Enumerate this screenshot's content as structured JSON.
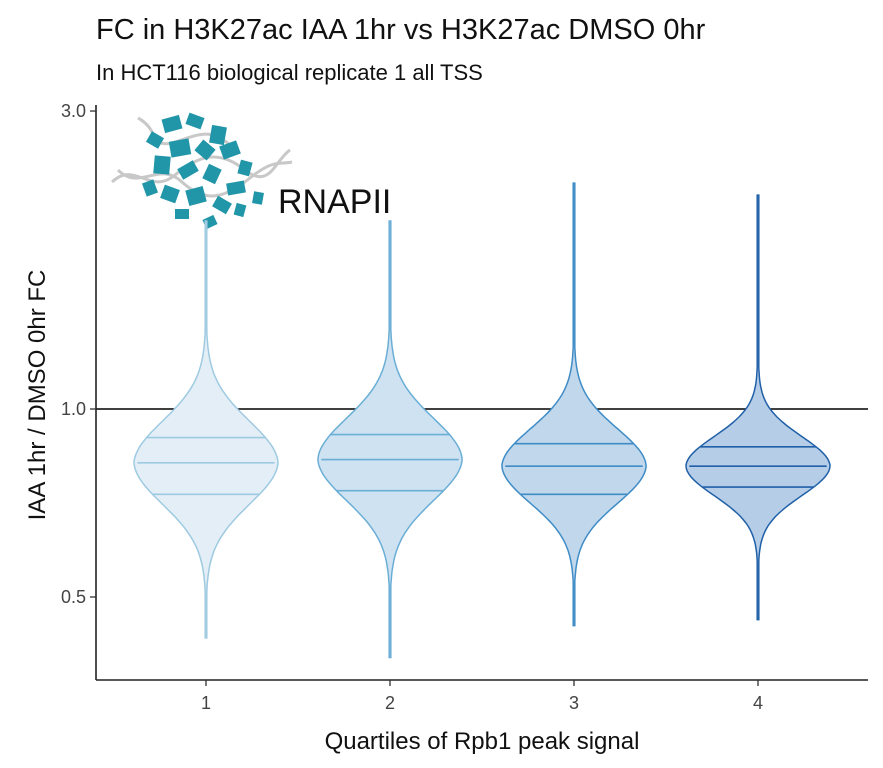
{
  "header": {
    "title": "FC in H3K27ac IAA 1hr vs H3K27ac DMSO 0hr",
    "subtitle": "In HCT116 biological replicate 1 all TSS"
  },
  "logo": {
    "label": "RNAPII",
    "icon": "rnapii-protein-icon",
    "color": "#2196a8"
  },
  "chart_data": {
    "type": "violin",
    "title": "FC in H3K27ac IAA 1hr vs H3K27ac DMSO 0hr",
    "subtitle": "In HCT116 biological replicate 1 all TSS",
    "xlabel": "Quartiles of Rpb1 peak signal",
    "ylabel": "IAA 1hr / DMSO 0hr FC",
    "y_scale": "log2",
    "ylim": [
      0.38,
      3.1
    ],
    "y_ticks": [
      0.5,
      1.0,
      3.0
    ],
    "y_tick_labels": [
      "0.5",
      "1.0",
      "3.0"
    ],
    "categories": [
      "1",
      "2",
      "3",
      "4"
    ],
    "reference_line": 1.0,
    "quantiles_drawn": [
      0.25,
      0.5,
      0.75
    ],
    "series": [
      {
        "category": "1",
        "fill": "#e3eef7",
        "stroke": "#9ecae1",
        "min": 0.43,
        "q1": 0.73,
        "median": 0.82,
        "q3": 0.9,
        "max": 2.0
      },
      {
        "category": "2",
        "fill": "#cfe2f1",
        "stroke": "#6aaed6",
        "min": 0.4,
        "q1": 0.74,
        "median": 0.83,
        "q3": 0.91,
        "max": 2.0
      },
      {
        "category": "3",
        "fill": "#c0d7ec",
        "stroke": "#3f8cc6",
        "min": 0.45,
        "q1": 0.73,
        "median": 0.81,
        "q3": 0.88,
        "max": 2.3
      },
      {
        "category": "4",
        "fill": "#b5cde6",
        "stroke": "#2060a8",
        "min": 0.46,
        "q1": 0.75,
        "median": 0.81,
        "q3": 0.87,
        "max": 2.2
      }
    ]
  }
}
